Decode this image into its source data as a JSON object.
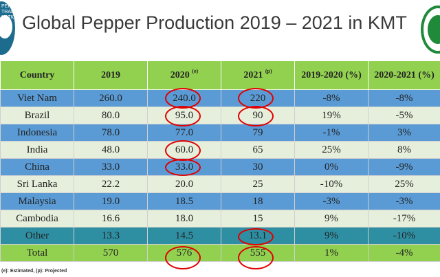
{
  "slide": {
    "title": "Global Pepper Production 2019 – 2021 in KMT",
    "footnote": "(e): Estimated, (p): Projected",
    "left_logo_text": "PEPPER TRADE\nNATION",
    "accent_colors": {
      "header_green": "#92d050",
      "row_blue": "#5b9bd5",
      "row_light": "#e6efdb",
      "row_teal": "#2e8fa3",
      "circle_red": "#e00000"
    }
  },
  "table": {
    "headers": [
      "Country",
      "2019",
      "2020",
      "2021",
      "2019-2020 (%)",
      "2020-2021 (%)"
    ],
    "header_marks": [
      "",
      "",
      "(e)",
      "(p)",
      "",
      ""
    ],
    "rows": [
      [
        "Viet Nam",
        "260.0",
        "240.0",
        "220",
        "-8%",
        "-8%"
      ],
      [
        "Brazil",
        "80.0",
        "95.0",
        "90",
        "19%",
        "-5%"
      ],
      [
        "Indonesia",
        "78.0",
        "77.0",
        "79",
        "-1%",
        "3%"
      ],
      [
        "India",
        "48.0",
        "60.0",
        "65",
        "25%",
        "8%"
      ],
      [
        "China",
        "33.0",
        "33.0",
        "30",
        "0%",
        "-9%"
      ],
      [
        "Sri Lanka",
        "22.2",
        "20.0",
        "25",
        "-10%",
        "25%"
      ],
      [
        "Malaysia",
        "19.0",
        "18.5",
        "18",
        "-3%",
        "-3%"
      ],
      [
        "Cambodia",
        "16.6",
        "18.0",
        "15",
        "9%",
        "-17%"
      ],
      [
        "Other",
        "13.3",
        "14.5",
        "13.1",
        "9%",
        "-10%"
      ],
      [
        "Total",
        "570",
        "576",
        "555",
        "1%",
        "-4%"
      ]
    ]
  }
}
